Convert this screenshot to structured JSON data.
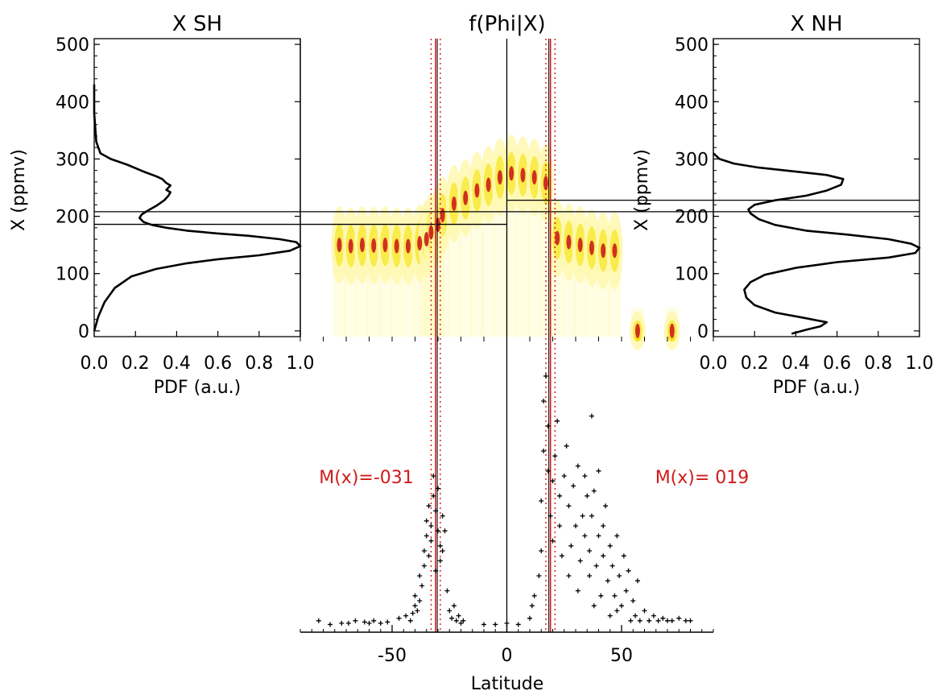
{
  "chart_data": [
    {
      "type": "line",
      "panel": "left",
      "title": "X  SH",
      "xlabel": "PDF (a.u.)",
      "ylabel": "X (ppmv)",
      "xlim": [
        0,
        1.0
      ],
      "ylim": [
        -10,
        510
      ],
      "xticks": [
        "0.0",
        "0.2",
        "0.4",
        "0.6",
        "0.8",
        "1.0"
      ],
      "yticks": [
        "0",
        "100",
        "200",
        "300",
        "400",
        "500"
      ],
      "x": [
        0.0,
        0.02,
        0.05,
        0.1,
        0.18,
        0.3,
        0.45,
        0.6,
        0.8,
        0.95,
        1.0,
        0.98,
        0.9,
        0.75,
        0.6,
        0.45,
        0.35,
        0.28,
        0.24,
        0.22,
        0.23,
        0.26,
        0.3,
        0.34,
        0.36,
        0.37,
        0.35,
        0.36,
        0.37,
        0.35,
        0.33,
        0.3,
        0.24,
        0.16,
        0.08,
        0.03,
        0.01,
        0.0,
        0.0
      ],
      "y": [
        0,
        25,
        50,
        75,
        95,
        108,
        118,
        125,
        132,
        140,
        148,
        155,
        160,
        166,
        170,
        175,
        180,
        185,
        190,
        197,
        203,
        210,
        218,
        228,
        236,
        242,
        246,
        250,
        254,
        258,
        265,
        270,
        278,
        290,
        300,
        310,
        330,
        380,
        430
      ],
      "hlines": [
        186,
        208
      ]
    },
    {
      "type": "heatmap",
      "panel": "center",
      "title": "f(Phi|X)",
      "xlim": [
        -90,
        90
      ],
      "ylim": [
        -10,
        510
      ],
      "latitudes": [
        -73,
        -68,
        -63,
        -58,
        -53,
        -48,
        -43,
        -38,
        -35,
        -33,
        -30,
        -28,
        -23,
        -18,
        -13,
        -8,
        -3,
        2,
        7,
        12,
        17,
        22,
        27,
        32,
        37,
        42,
        47,
        57,
        72
      ],
      "peak_x": [
        150,
        148,
        150,
        149,
        150,
        148,
        148,
        153,
        160,
        172,
        185,
        202,
        222,
        232,
        245,
        255,
        268,
        275,
        272,
        268,
        258,
        162,
        155,
        150,
        145,
        140,
        140,
        0,
        0
      ],
      "hlines_sh": [
        186,
        208
      ],
      "hlines_nh": [
        208,
        228
      ]
    },
    {
      "type": "line",
      "panel": "right",
      "title": "X  NH",
      "xlabel": "PDF (a.u.)",
      "ylabel": "X (ppmv)",
      "xlim": [
        0,
        1.0
      ],
      "ylim": [
        -10,
        510
      ],
      "xticks": [
        "0.0",
        "0.2",
        "0.4",
        "0.6",
        "0.8",
        "1.0"
      ],
      "yticks": [
        "0",
        "100",
        "200",
        "300",
        "400",
        "500"
      ],
      "x": [
        0.38,
        0.45,
        0.52,
        0.55,
        0.45,
        0.3,
        0.2,
        0.16,
        0.15,
        0.18,
        0.25,
        0.4,
        0.6,
        0.85,
        0.98,
        1.0,
        0.96,
        0.85,
        0.65,
        0.45,
        0.3,
        0.22,
        0.18,
        0.17,
        0.2,
        0.3,
        0.45,
        0.55,
        0.62,
        0.63,
        0.55,
        0.4,
        0.22,
        0.1,
        0.03,
        0.0
      ],
      "y": [
        -5,
        2,
        8,
        15,
        22,
        32,
        45,
        58,
        72,
        85,
        98,
        110,
        120,
        128,
        136,
        145,
        152,
        160,
        168,
        175,
        185,
        195,
        205,
        212,
        220,
        228,
        236,
        245,
        255,
        265,
        272,
        278,
        285,
        292,
        300,
        310
      ],
      "hlines": [
        208,
        228
      ]
    },
    {
      "type": "scatter",
      "panel": "bottom",
      "xlabel": "Latitude",
      "xlim": [
        -90,
        90
      ],
      "xticks": [
        "-50",
        "0",
        "50"
      ],
      "points": [
        [
          -82,
          2
        ],
        [
          -77,
          0.5
        ],
        [
          -72,
          1
        ],
        [
          -69,
          1
        ],
        [
          -66,
          2
        ],
        [
          -62,
          1.5
        ],
        [
          -60,
          1
        ],
        [
          -58,
          2
        ],
        [
          -55,
          1
        ],
        [
          -52,
          1.5
        ],
        [
          -47,
          3
        ],
        [
          -44,
          4
        ],
        [
          -42,
          2
        ],
        [
          -41,
          5
        ],
        [
          -40,
          8
        ],
        [
          -40,
          12
        ],
        [
          -39,
          6
        ],
        [
          -38,
          10
        ],
        [
          -38,
          20
        ],
        [
          -37,
          16
        ],
        [
          -36,
          24
        ],
        [
          -36,
          30
        ],
        [
          -35,
          36
        ],
        [
          -35,
          42
        ],
        [
          -34,
          28
        ],
        [
          -34,
          48
        ],
        [
          -33,
          34
        ],
        [
          -33,
          40
        ],
        [
          -32,
          52
        ],
        [
          -32,
          60
        ],
        [
          -31,
          22
        ],
        [
          -31,
          46
        ],
        [
          -30,
          38
        ],
        [
          -30,
          55
        ],
        [
          -29,
          26
        ],
        [
          -29,
          32
        ],
        [
          -28,
          30
        ],
        [
          -28,
          44
        ],
        [
          -27,
          38
        ],
        [
          -26,
          14
        ],
        [
          -25,
          6
        ],
        [
          -24,
          3
        ],
        [
          -23,
          8
        ],
        [
          -22,
          2
        ],
        [
          -21,
          4
        ],
        [
          -20,
          1
        ],
        [
          -19,
          2
        ],
        [
          -10,
          0.5
        ],
        [
          -5,
          0.5
        ],
        [
          0,
          1
        ],
        [
          5,
          0.5
        ],
        [
          10,
          3
        ],
        [
          11,
          8
        ],
        [
          12,
          12
        ],
        [
          14,
          20
        ],
        [
          15,
          30
        ],
        [
          15,
          50
        ],
        [
          16,
          70
        ],
        [
          16,
          90
        ],
        [
          17,
          100
        ],
        [
          18,
          80
        ],
        [
          18,
          62
        ],
        [
          19,
          44
        ],
        [
          20,
          34
        ],
        [
          20,
          58
        ],
        [
          21,
          68
        ],
        [
          22,
          82
        ],
        [
          23,
          52
        ],
        [
          23,
          40
        ],
        [
          24,
          28
        ],
        [
          25,
          60
        ],
        [
          26,
          72
        ],
        [
          27,
          48
        ],
        [
          27,
          20
        ],
        [
          28,
          32
        ],
        [
          29,
          56
        ],
        [
          30,
          40
        ],
        [
          31,
          64
        ],
        [
          31,
          14
        ],
        [
          32,
          26
        ],
        [
          33,
          44
        ],
        [
          34,
          36
        ],
        [
          34,
          60
        ],
        [
          35,
          52
        ],
        [
          36,
          30
        ],
        [
          36,
          20
        ],
        [
          37,
          84
        ],
        [
          37,
          44
        ],
        [
          38,
          54
        ],
        [
          38,
          8
        ],
        [
          39,
          24
        ],
        [
          40,
          36
        ],
        [
          40,
          62
        ],
        [
          41,
          12
        ],
        [
          42,
          28
        ],
        [
          42,
          40
        ],
        [
          43,
          48
        ],
        [
          44,
          18
        ],
        [
          45,
          32
        ],
        [
          45,
          4
        ],
        [
          46,
          24
        ],
        [
          47,
          12
        ],
        [
          48,
          36
        ],
        [
          48,
          6
        ],
        [
          49,
          20
        ],
        [
          50,
          8
        ],
        [
          51,
          28
        ],
        [
          52,
          14
        ],
        [
          53,
          22
        ],
        [
          54,
          2
        ],
        [
          55,
          10
        ],
        [
          56,
          4
        ],
        [
          57,
          18
        ],
        [
          58,
          2
        ],
        [
          60,
          6
        ],
        [
          62,
          2
        ],
        [
          64,
          4
        ],
        [
          66,
          2
        ],
        [
          68,
          3
        ],
        [
          70,
          2
        ],
        [
          72,
          2
        ],
        [
          75,
          3
        ],
        [
          78,
          2
        ],
        [
          80,
          2
        ]
      ],
      "annotations": [
        "M(x)=-031",
        "M(x)= 019"
      ],
      "vlines_sh": {
        "center": -31,
        "dotted": [
          -33,
          -29
        ]
      },
      "vlines_nh": {
        "center": 19,
        "dotted": [
          17,
          21
        ]
      }
    }
  ],
  "colors": {
    "line": "#000000",
    "accent_red": "#d11a1a",
    "heat_low": "#fff8b0",
    "heat_mid": "#f5e000",
    "heat_high": "#d03020"
  }
}
